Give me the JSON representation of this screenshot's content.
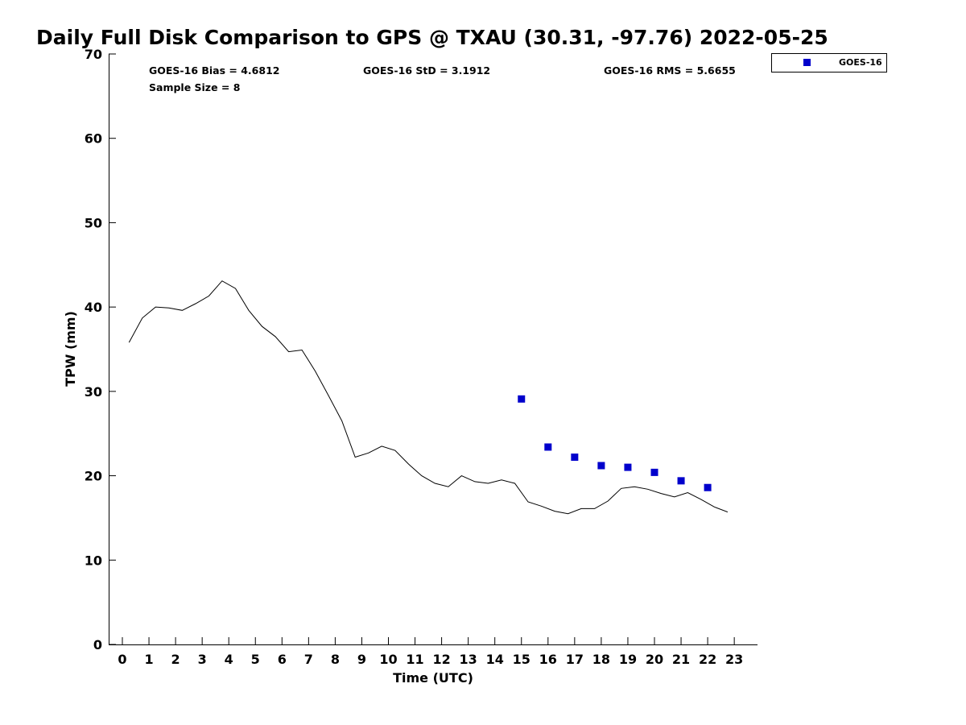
{
  "chart_data": {
    "type": "line",
    "title": "Daily Full Disk Comparison to GPS @ TXAU (30.31, -97.76) 2022-05-25",
    "xlabel": "Time (UTC)",
    "ylabel": "TPW (mm)",
    "xlim": [
      -0.5,
      23.8
    ],
    "ylim": [
      0,
      70
    ],
    "x_ticks": [
      "0",
      "1",
      "2",
      "3",
      "4",
      "5",
      "6",
      "7",
      "8",
      "9",
      "10",
      "11",
      "12",
      "13",
      "14",
      "15",
      "16",
      "17",
      "18",
      "19",
      "20",
      "21",
      "22",
      "23"
    ],
    "y_ticks": [
      "0",
      "10",
      "20",
      "30",
      "40",
      "50",
      "60",
      "70"
    ],
    "grid": false,
    "legend": {
      "position": "top-right",
      "entries": [
        "GOES-16"
      ]
    },
    "colors": {
      "line": "#000000",
      "marker": "#0000cc"
    },
    "stats": {
      "bias": "GOES-16 Bias = 4.6812",
      "std": "GOES-16 StD = 3.1912",
      "rms": "GOES-16 RMS = 5.6655",
      "sample": "Sample Size = 8"
    },
    "line_series": {
      "x": [
        0.25,
        0.75,
        1.25,
        1.75,
        2.25,
        2.75,
        3.25,
        3.75,
        4.25,
        4.75,
        5.25,
        5.75,
        6.25,
        6.75,
        7.25,
        7.75,
        8.25,
        8.75,
        9.25,
        9.75,
        10.25,
        10.75,
        11.25,
        11.75,
        12.25,
        12.75,
        13.25,
        13.75,
        14.25,
        14.75,
        15.25,
        15.75,
        16.25,
        16.75,
        17.25,
        17.75,
        18.25,
        18.75,
        19.25,
        19.75,
        20.25,
        20.75,
        21.25,
        21.75,
        22.25,
        22.75
      ],
      "y": [
        35.8,
        38.7,
        40.0,
        39.9,
        39.6,
        40.4,
        41.3,
        43.1,
        42.2,
        39.6,
        37.7,
        36.5,
        34.7,
        34.9,
        32.4,
        29.5,
        26.5,
        22.2,
        22.7,
        23.5,
        23.0,
        21.4,
        20.0,
        19.1,
        18.7,
        20.0,
        19.3,
        19.1,
        19.5,
        19.1,
        16.9,
        16.4,
        15.8,
        15.5,
        16.1,
        16.1,
        17.0,
        18.5,
        18.7,
        18.4,
        17.9,
        17.5,
        18.0,
        17.2,
        16.3,
        15.7
      ]
    },
    "series": [
      {
        "name": "GOES-16",
        "x": [
          15,
          16,
          17,
          18,
          19,
          20,
          21,
          22
        ],
        "values": [
          29.1,
          23.4,
          22.2,
          21.2,
          21.0,
          20.4,
          19.4,
          18.6
        ]
      }
    ]
  }
}
